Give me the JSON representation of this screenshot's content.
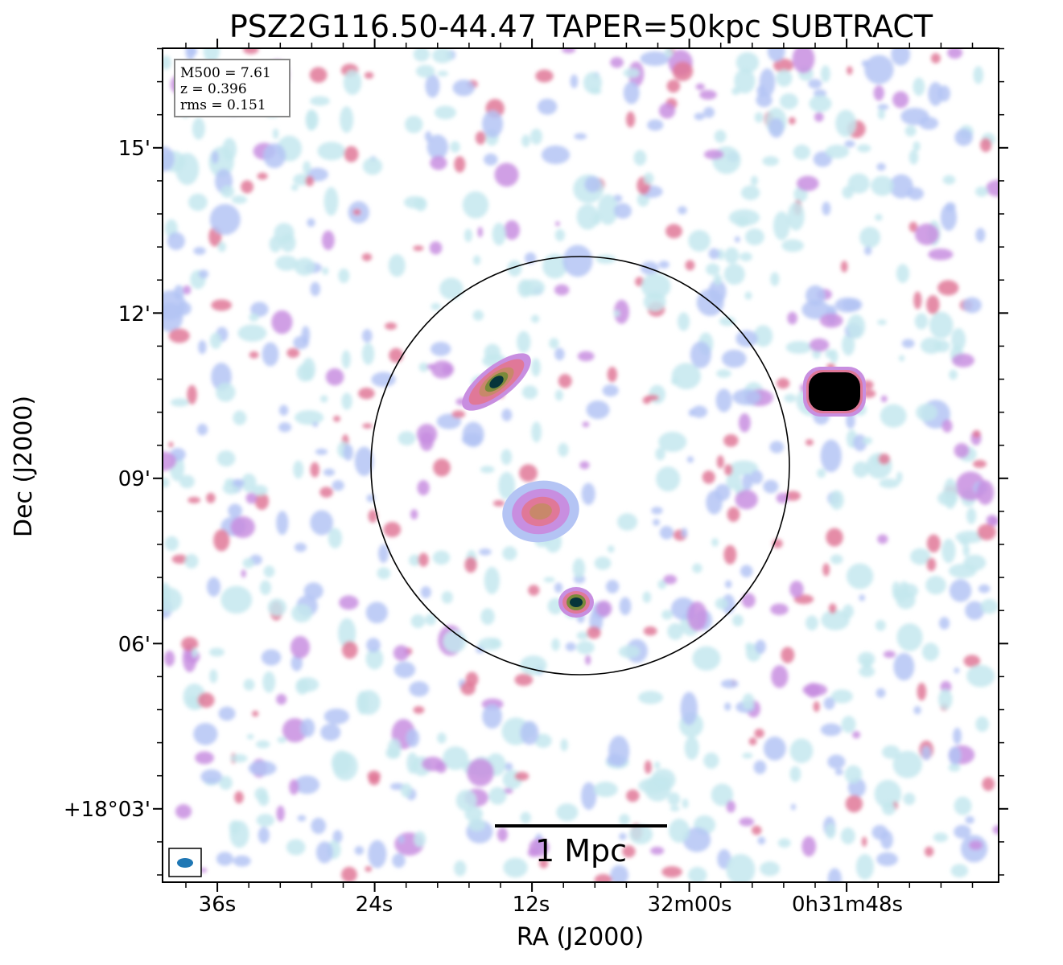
{
  "title": "PSZ2G116.50-44.47 TAPER=50kpc SUBTRACT",
  "axes": {
    "xlabel": "RA (J2000)",
    "ylabel": "Dec (J2000)",
    "ra_ticks": [
      "36s",
      "24s",
      "12s",
      "32m00s",
      "0h31m48s"
    ],
    "dec_ticks": [
      "15'",
      "12'",
      "09'",
      "06'",
      "+18°03'"
    ]
  },
  "info": {
    "mass": "M500 = 7.61",
    "redshift": "z = 0.396",
    "rms": "rms = 0.151"
  },
  "scale_bar": {
    "label": "1 Mpc"
  },
  "colors": {
    "faint": "#c4e8ee",
    "low": "#b4c4f4",
    "mid": "#c88ee0",
    "high": "#e07898",
    "peak": "#c8886a",
    "core_ring": "#7a8a3a",
    "core": "#06343a",
    "beam": "#1f77b4",
    "circle": "#000000"
  },
  "sources": [
    {
      "name": "compact-source-east-edge",
      "ra": "0h31m49s",
      "dec": "+18°10.6'",
      "level": "saturated"
    },
    {
      "name": "extended-source-north",
      "ra": "0h32m13s",
      "dec": "+18°10.7'",
      "level": "bright"
    },
    {
      "name": "compact-source-south",
      "ra": "0h32m08s",
      "dec": "+18°06.7'",
      "level": "bright"
    },
    {
      "name": "central-diffuse-emission",
      "ra": "0h32m11s",
      "dec": "+18°08.4'",
      "level": "moderate"
    }
  ]
}
